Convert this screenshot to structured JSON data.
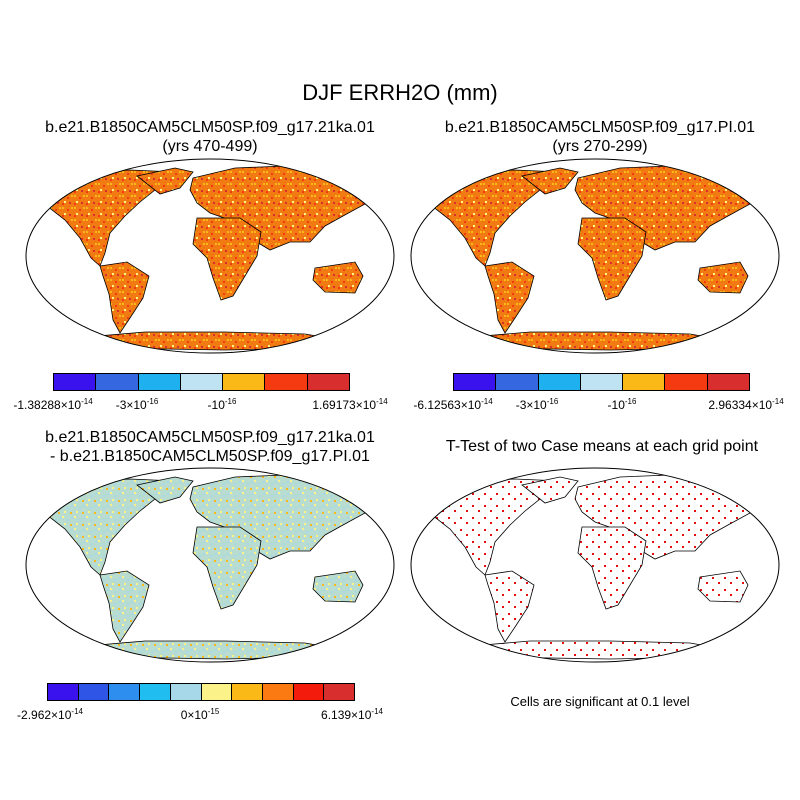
{
  "title": "DJF ERRH2O (mm)",
  "panels": [
    {
      "title_line1": "b.e21.B1850CAM5CLM50SP.f09_g17.21ka.01",
      "title_line2": "(yrs 470-499)",
      "colorbar": [
        "#3a12ee",
        "#3467e0",
        "#1fb0f0",
        "#bfe3f2",
        "#fbb918",
        "#f53a12",
        "#d82e2e"
      ],
      "ticks": [
        {
          "base": "-1.38288×10",
          "exp": "-14"
        },
        {
          "base": "-3×10",
          "exp": "-16"
        },
        {
          "base": "-10",
          "exp": "-16"
        },
        {
          "base": "1.69173×10",
          "exp": "-14"
        }
      ]
    },
    {
      "title_line1": "b.e21.B1850CAM5CLM50SP.f09_g17.PI.01",
      "title_line2": "(yrs 270-299)",
      "colorbar": [
        "#3a12ee",
        "#3467e0",
        "#1fb0f0",
        "#bfe3f2",
        "#fbb918",
        "#f53a12",
        "#d82e2e"
      ],
      "ticks": [
        {
          "base": "-6.12563×10",
          "exp": "-14"
        },
        {
          "base": "-3×10",
          "exp": "-16"
        },
        {
          "base": "-10",
          "exp": "-16"
        },
        {
          "base": "2.96334×10",
          "exp": "-14"
        }
      ]
    },
    {
      "title_line1": "b.e21.B1850CAM5CLM50SP.f09_g17.21ka.01",
      "title_line2": "- b.e21.B1850CAM5CLM50SP.f09_g17.PI.01",
      "colorbar": [
        "#3a12ee",
        "#2f55e6",
        "#2e8ef0",
        "#1fbdf0",
        "#a6d8ea",
        "#fbf28a",
        "#fbb918",
        "#fb7a12",
        "#f21b0c",
        "#d82e2e"
      ],
      "ticks": [
        {
          "base": "-2.962×10",
          "exp": "-14"
        },
        {
          "base": "0×10",
          "exp": "-15"
        },
        {
          "base": "6.139×10",
          "exp": "-14"
        }
      ]
    },
    {
      "title_line1": "T-Test of two Case means at each grid point",
      "note": "Cells are significant at 0.1 level"
    }
  ],
  "colors": {
    "land_orange": "#f27a12",
    "land_yellow_green": "#b9dcd0",
    "sig_red": "#e01010"
  }
}
